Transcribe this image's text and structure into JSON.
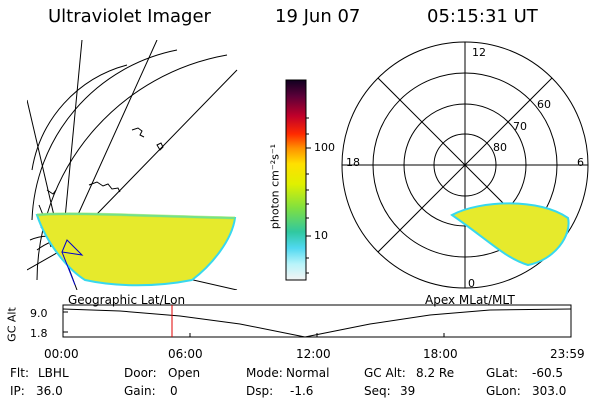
{
  "header": {
    "title": "Ultraviolet Imager",
    "date": "19 Jun 07",
    "time": "05:15:31 UT"
  },
  "colorbar": {
    "unit_label": "photon cm⁻²s⁻¹",
    "ticks": [
      "100",
      "10"
    ]
  },
  "polar": {
    "mlt_labels": {
      "top": "12",
      "left": "18",
      "right": "6",
      "bottom": "0"
    },
    "lat_labels": [
      "60",
      "70",
      "80"
    ]
  },
  "panel_titles": {
    "geographic": "Geographic Lat/Lon",
    "apex": "Apex MLat/MLT"
  },
  "altitude_plot": {
    "ylabel": "GC Alt",
    "yticks": [
      "9.0",
      "1.8"
    ],
    "xticks": [
      "00:00",
      "06:00",
      "12:00",
      "18:00",
      "23:59"
    ]
  },
  "info": {
    "filter_label": "Flt:",
    "filter_value": "LBHL",
    "door_label": "Door:",
    "door_value": "Open",
    "mode_label": "Mode:",
    "mode_value": "Normal",
    "gcalt_label": "GC Alt:",
    "gcalt_value": "8.2 Re",
    "glat_label": "GLat:",
    "glat_value": "-60.5",
    "ip_label": "IP:",
    "ip_value": "36.0",
    "gain_label": "Gain:",
    "gain_value": "0",
    "dsp_label": "Dsp:",
    "dsp_value": "-1.6",
    "seq_label": "Seq:",
    "seq_value": "39",
    "glon_label": "GLon:",
    "glon_value": "303.0"
  },
  "colors": {
    "aurora_fill": "#e6ea2c",
    "aurora_edge": "#38d8ee",
    "time_marker": "#e00000"
  }
}
